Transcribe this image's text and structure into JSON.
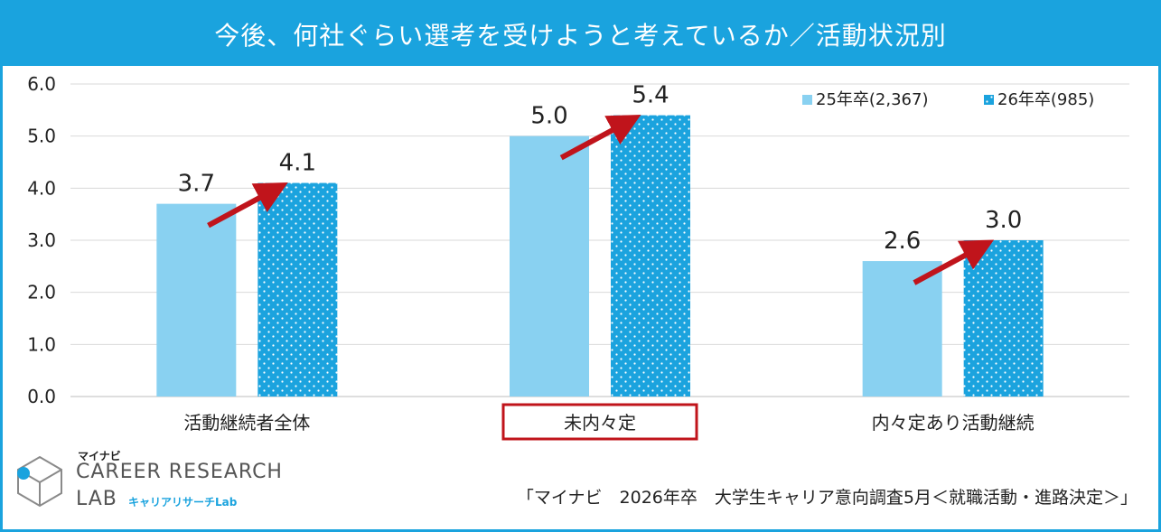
{
  "title": "今後、何社ぐらい選考を受けようと考えているか／活動状況別",
  "colors": {
    "frame": "#1aa3de",
    "series1": "#89d1f1",
    "series2": "#1ba3de",
    "arrow": "#c0141b",
    "highlight_box": "#c0141b"
  },
  "chart_data": {
    "type": "bar",
    "categories": [
      "活動継続者全体",
      "未内々定",
      "内々定あり活動継続"
    ],
    "series": [
      {
        "name": "25年卒(2,367)",
        "values": [
          3.7,
          5.0,
          2.6
        ],
        "labels": [
          "3.7",
          "5.0",
          "2.6"
        ]
      },
      {
        "name": "26年卒(985)",
        "values": [
          4.1,
          5.4,
          3.0
        ],
        "labels": [
          "4.1",
          "5.4",
          "3.0"
        ]
      }
    ],
    "ylim": [
      0,
      6
    ],
    "yticks": [
      "0.0",
      "1.0",
      "2.0",
      "3.0",
      "4.0",
      "5.0",
      "6.0"
    ],
    "grid": true,
    "legend_position": "top-right",
    "highlighted_category": "未内々定"
  },
  "logo": {
    "brand": "マイナビ",
    "line1": "CAREER RESEARCH",
    "line2": "LAB",
    "sub": "キャリアリサーチLab"
  },
  "source": "「マイナビ　2026年卒　大学生キャリア意向調査5月＜就職活動・進路決定＞」"
}
